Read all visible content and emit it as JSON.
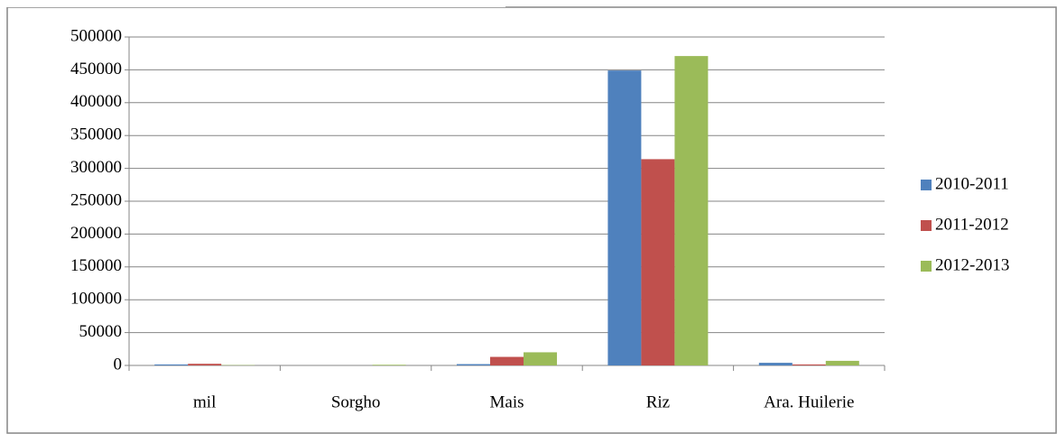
{
  "chart_data": {
    "type": "bar",
    "categories": [
      "mil",
      "Sorgho",
      "Mais",
      "Riz",
      "Ara. Huilerie"
    ],
    "series": [
      {
        "name": "2010-2011",
        "color": "#4f81bd",
        "values": [
          1500,
          0,
          2000,
          449000,
          4000
        ]
      },
      {
        "name": "2011-2012",
        "color": "#c0504d",
        "values": [
          2500,
          0,
          13000,
          314000,
          1500
        ]
      },
      {
        "name": "2012-2013",
        "color": "#9bbb59",
        "values": [
          500,
          1000,
          20000,
          471000,
          7000
        ]
      }
    ],
    "ylim": [
      0,
      500000
    ],
    "yticks": [
      0,
      50000,
      100000,
      150000,
      200000,
      250000,
      300000,
      350000,
      400000,
      450000,
      500000
    ],
    "grid": true,
    "legend": "right"
  }
}
